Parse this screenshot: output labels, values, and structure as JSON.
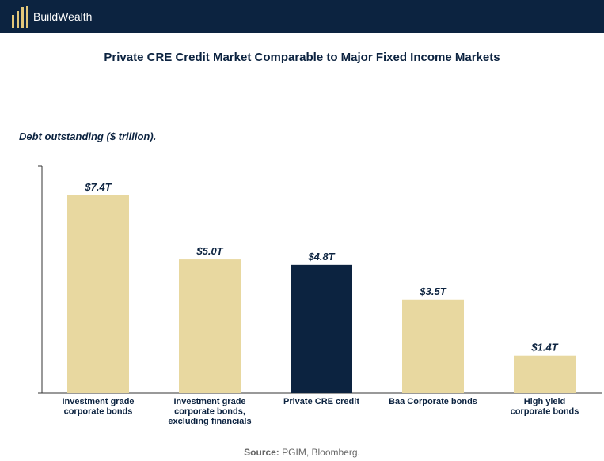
{
  "header": {
    "brand": "BuildWealth",
    "logo_icon": "buildwealth-logo-icon",
    "background": "#0c2340",
    "logo_color": "#e3c77a"
  },
  "chart_data": {
    "type": "bar",
    "title": "Private CRE Credit Market Comparable to Major Fixed Income Markets",
    "subtitle": "Debt outstanding ($ trillion).",
    "categories": [
      [
        "Investment grade",
        "corporate bonds"
      ],
      [
        "Investment grade",
        "corporate bonds,",
        "excluding financials"
      ],
      [
        "Private CRE credit"
      ],
      [
        "Baa Corporate bonds"
      ],
      [
        "High yield",
        "corporate bonds"
      ]
    ],
    "values": [
      7.4,
      5.0,
      4.8,
      3.5,
      1.4
    ],
    "value_labels": [
      "$7.4T",
      "$5.0T",
      "$4.8T",
      "$3.5T",
      "$1.4T"
    ],
    "colors": [
      "#e8d8a0",
      "#e8d8a0",
      "#0c2340",
      "#e8d8a0",
      "#e8d8a0"
    ],
    "ylim": [
      0,
      7.4
    ],
    "grid": false,
    "legend": "none"
  },
  "source": {
    "label": "Source:",
    "text": " PGIM, Bloomberg."
  }
}
